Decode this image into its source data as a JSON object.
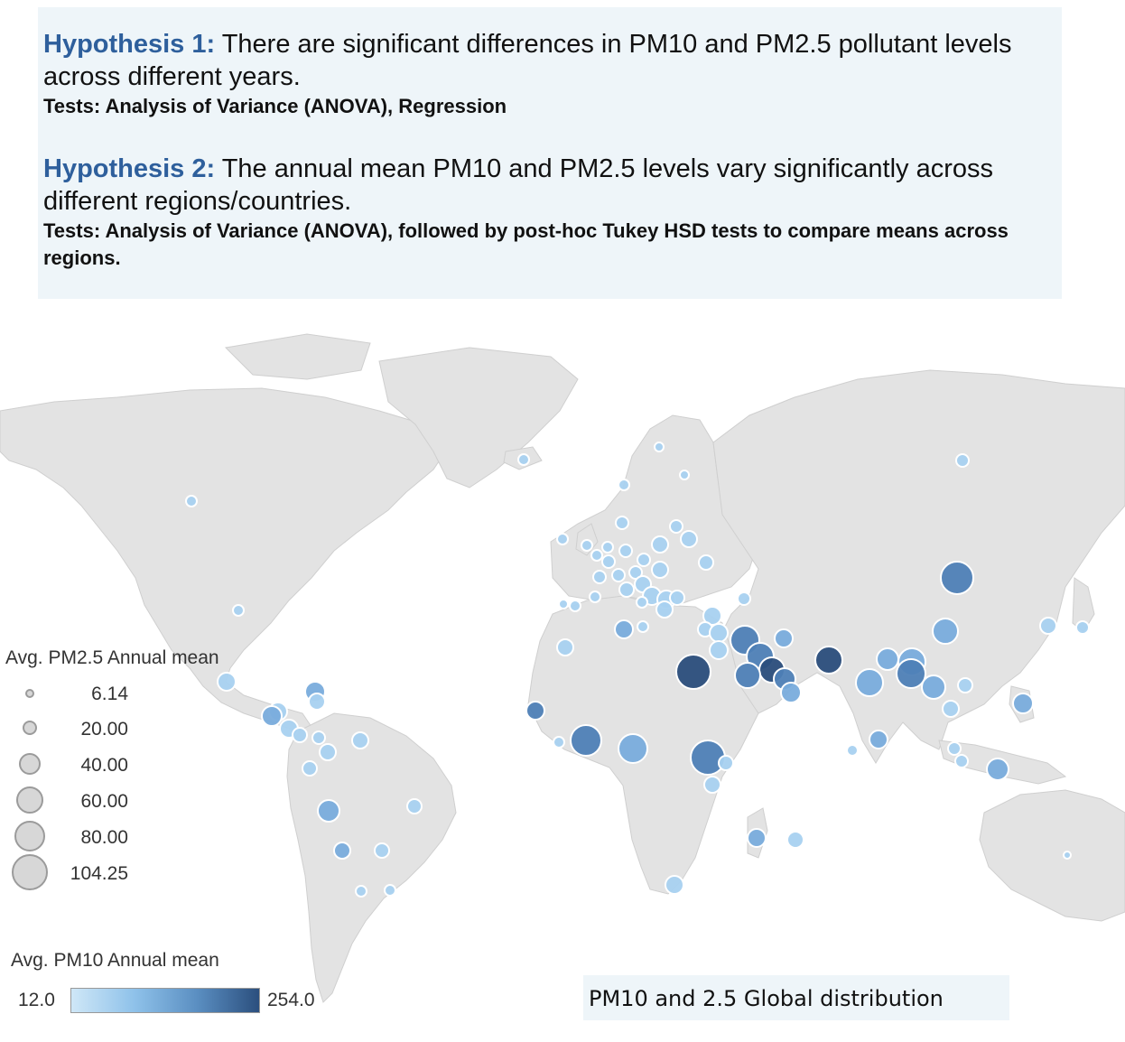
{
  "hypotheses": [
    {
      "label": "Hypothesis 1:",
      "text": " There are significant differences in PM10 and PM2.5 pollutant levels across different years.",
      "tests": "Tests: Analysis of Variance (ANOVA), Regression"
    },
    {
      "label": "Hypothesis 2:",
      "text": " The annual mean PM10 and PM2.5 levels vary significantly across different regions/countries.",
      "tests": "Tests: Analysis of Variance (ANOVA), followed by post-hoc Tukey HSD tests to compare means across regions."
    }
  ],
  "legend_size": {
    "title": "Avg. PM2.5 Annual mean",
    "items": [
      "6.14",
      "20.00",
      "40.00",
      "60.00",
      "80.00",
      "104.25"
    ]
  },
  "legend_color": {
    "title": "Avg. PM10 Annual mean",
    "min": "12.0",
    "max": "254.0"
  },
  "caption": "PM10 and 2.5 Global distribution",
  "colors": {
    "land": "#e3e3e3",
    "border": "#c9c9c9",
    "low": "#cfe7f7",
    "high": "#2b4f7e",
    "box_bg": "#eef5f9",
    "hyp_label": "#2e5f9c"
  }
}
